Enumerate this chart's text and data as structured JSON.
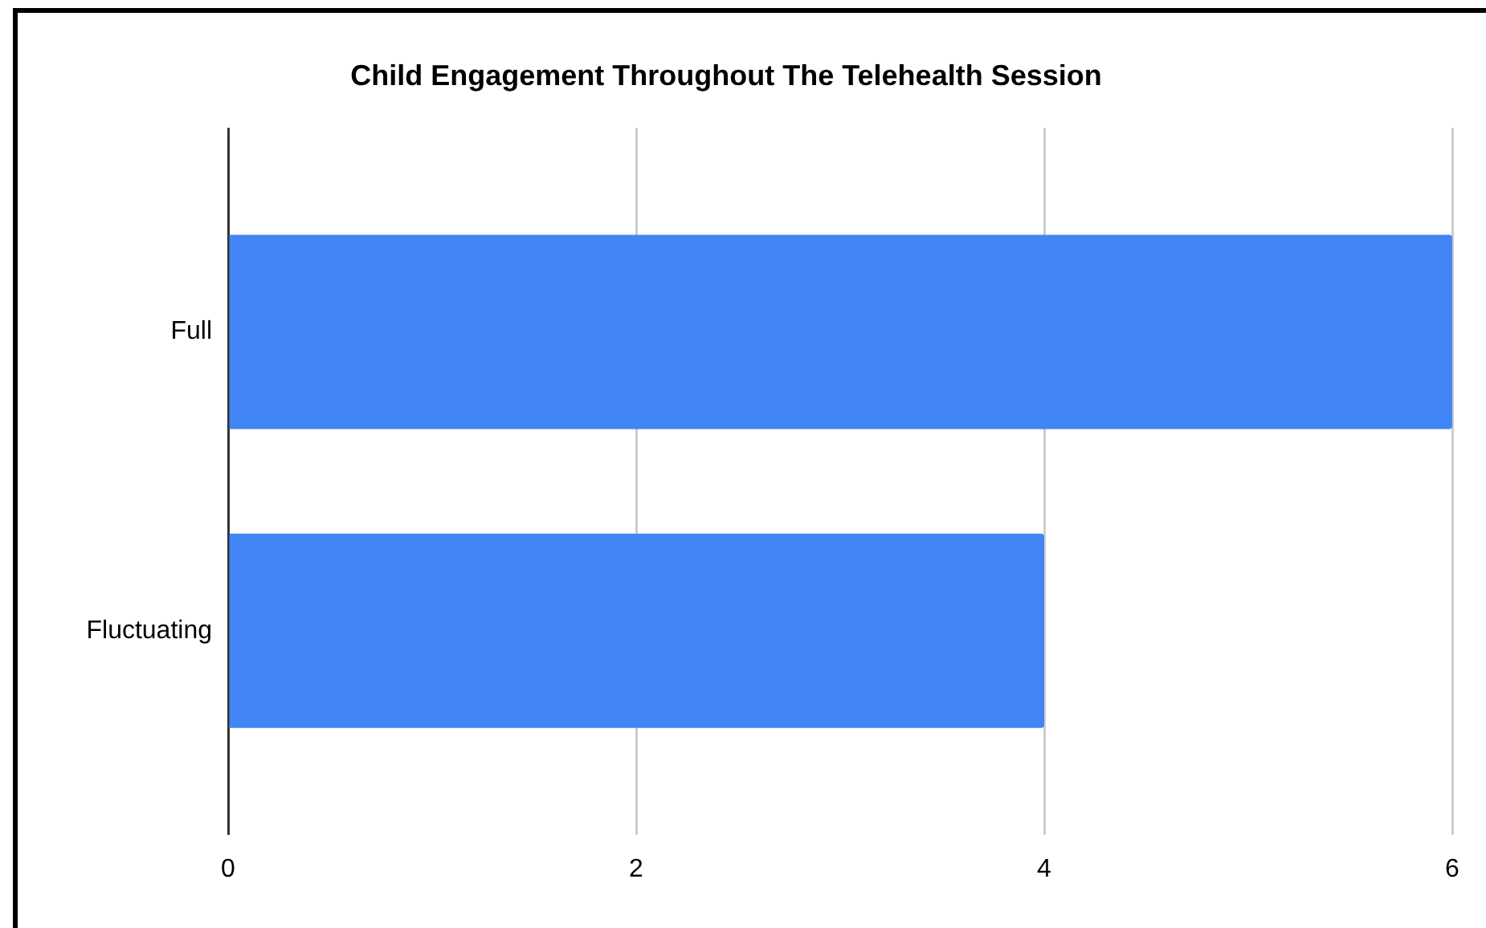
{
  "chart_data": {
    "type": "bar",
    "orientation": "horizontal",
    "title": "Child Engagement Throughout The Telehealth Session",
    "categories": [
      "Full",
      "Fluctuating"
    ],
    "values": [
      6,
      4
    ],
    "color": "#4285f4",
    "xlim": [
      0,
      6
    ],
    "xticks": [
      0,
      2,
      4,
      6
    ],
    "grid": "x"
  }
}
